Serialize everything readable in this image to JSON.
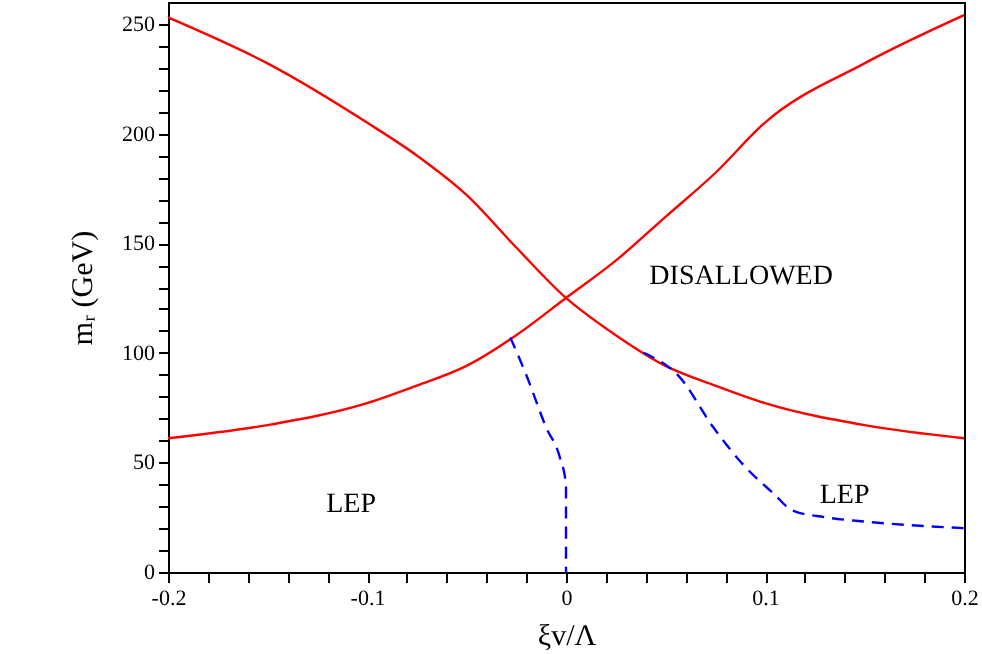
{
  "chart_data": {
    "type": "line",
    "xlabel": "ξv/Λ",
    "ylabel": "mᵣ (GeV)",
    "xlim": [
      -0.2,
      0.2
    ],
    "ylim": [
      0,
      260
    ],
    "xticks": [
      -0.2,
      {
        "value": -0.18,
        "label": null
      },
      {
        "value": -0.16,
        "label": null
      },
      {
        "value": -0.14,
        "label": null
      },
      {
        "value": -0.12,
        "label": null
      },
      -0.1,
      {
        "value": -0.08,
        "label": null
      },
      {
        "value": -0.06,
        "label": null
      },
      {
        "value": -0.04,
        "label": null
      },
      {
        "value": -0.02,
        "label": null
      },
      0,
      {
        "value": 0.02,
        "label": null
      },
      {
        "value": 0.04,
        "label": null
      },
      {
        "value": 0.06,
        "label": null
      },
      {
        "value": 0.08,
        "label": null
      },
      0.1,
      {
        "value": 0.12,
        "label": null
      },
      {
        "value": 0.14,
        "label": null
      },
      {
        "value": 0.16,
        "label": null
      },
      {
        "value": 0.18,
        "label": null
      },
      0.2
    ],
    "yticks": [
      0,
      {
        "value": 10,
        "label": null
      },
      {
        "value": 20,
        "label": null
      },
      {
        "value": 30,
        "label": null
      },
      {
        "value": 40,
        "label": null
      },
      50,
      {
        "value": 60,
        "label": null
      },
      {
        "value": 70,
        "label": null
      },
      {
        "value": 80,
        "label": null
      },
      {
        "value": 90,
        "label": null
      },
      100,
      {
        "value": 110,
        "label": null
      },
      {
        "value": 120,
        "label": null
      },
      {
        "value": 130,
        "label": null
      },
      {
        "value": 140,
        "label": null
      },
      150,
      {
        "value": 160,
        "label": null
      },
      {
        "value": 170,
        "label": null
      },
      {
        "value": 180,
        "label": null
      },
      {
        "value": 190,
        "label": null
      },
      200,
      {
        "value": 210,
        "label": null
      },
      {
        "value": 220,
        "label": null
      },
      {
        "value": 230,
        "label": null
      },
      {
        "value": 240,
        "label": null
      },
      250
    ],
    "grid": false,
    "series": [
      {
        "color": "#ff0000",
        "line_style": "solid",
        "x": [
          -0.2,
          -0.15,
          -0.1,
          -0.075,
          -0.05,
          -0.025,
          0,
          0.025,
          0.05,
          0.075,
          0.1,
          0.15,
          0.2
        ],
        "values": [
          253,
          232,
          205,
          190,
          172,
          148,
          125,
          108,
          94,
          85,
          77,
          67,
          61
        ]
      },
      {
        "color": "#ff0000",
        "line_style": "solid",
        "x": [
          -0.2,
          -0.15,
          -0.1,
          -0.075,
          -0.05,
          -0.025,
          0,
          0.025,
          0.05,
          0.075,
          0.1,
          0.15,
          0.2
        ],
        "values": [
          61,
          67,
          77,
          85,
          94,
          108,
          125,
          142,
          162,
          182,
          205,
          232,
          254
        ]
      },
      {
        "color": "#0000ff",
        "line_style": "dashed",
        "x": [
          -0.028,
          -0.02,
          -0.01,
          -0.003,
          0,
          0
        ],
        "values": [
          107,
          90,
          66,
          52,
          40,
          0
        ]
      },
      {
        "color": "#0000ff",
        "line_style": "dashed",
        "x": [
          0.039,
          0.057,
          0.074,
          0.09,
          0.104,
          0.114,
          0.13,
          0.15,
          0.2
        ],
        "values": [
          100,
          89,
          66,
          48,
          36,
          28,
          25,
          23,
          20
        ]
      }
    ],
    "annotations": [
      "DISALLOWED",
      "LEP",
      "LEP"
    ]
  }
}
